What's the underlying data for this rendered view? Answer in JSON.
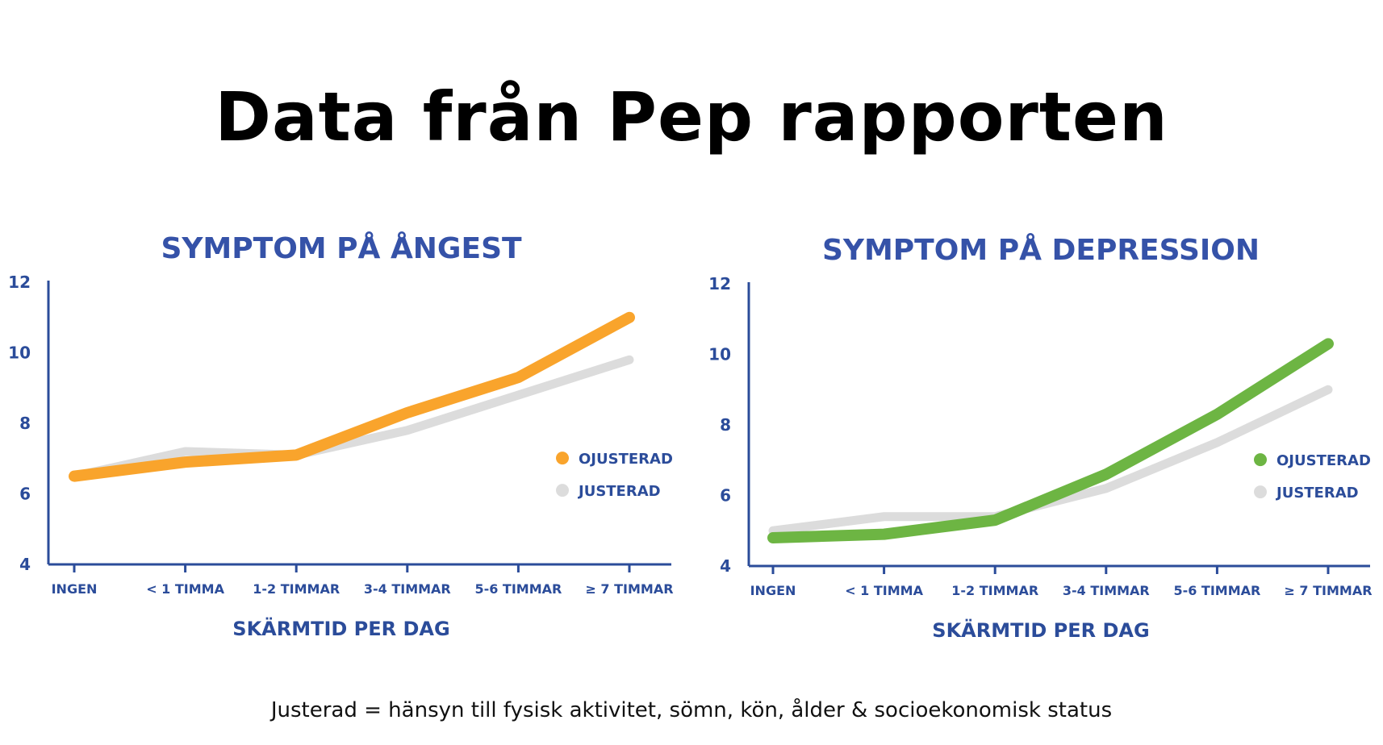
{
  "title": "Data från Pep rapporten",
  "footnote": "Justerad = hänsyn till fysisk aktivitet, sömn, kön, ålder & socioekonomisk status",
  "colors": {
    "axis": "#2b4c9a",
    "title": "#3552a8",
    "orange": "#f9a42c",
    "green": "#6db543",
    "gray": "#dcdcdc"
  },
  "chart_data": [
    {
      "type": "line",
      "title": "SYMPTOM PÅ ÅNGEST",
      "xlabel": "SKÄRMTID PER DAG",
      "ylabel": "",
      "categories": [
        "INGEN",
        "< 1 TIMMA",
        "1-2 TIMMAR",
        "3-4 TIMMAR",
        "5-6 TIMMAR",
        "≥ 7 TIMMAR"
      ],
      "ylim": [
        4,
        12
      ],
      "yticks": [
        "4",
        "6",
        "8",
        "10",
        "12"
      ],
      "grid": false,
      "legend": "right",
      "series": [
        {
          "name": "JUSTERAD",
          "color": "#dcdcdc",
          "values": [
            6.5,
            7.2,
            7.1,
            7.8,
            8.8,
            9.8
          ]
        },
        {
          "name": "OJUSTERAD",
          "color": "#f9a42c",
          "values": [
            6.5,
            6.9,
            7.1,
            8.3,
            9.3,
            11.0
          ]
        }
      ]
    },
    {
      "type": "line",
      "title": "SYMPTOM PÅ DEPRESSION",
      "xlabel": "SKÄRMTID PER DAG",
      "ylabel": "",
      "categories": [
        "INGEN",
        "< 1 TIMMA",
        "1-2 TIMMAR",
        "3-4 TIMMAR",
        "5-6 TIMMAR",
        "≥ 7 TIMMAR"
      ],
      "ylim": [
        4,
        12
      ],
      "yticks": [
        "4",
        "6",
        "8",
        "10",
        "12"
      ],
      "grid": false,
      "legend": "right",
      "series": [
        {
          "name": "JUSTERAD",
          "color": "#dcdcdc",
          "values": [
            5.0,
            5.4,
            5.4,
            6.2,
            7.5,
            9.0
          ]
        },
        {
          "name": "OJUSTERAD",
          "color": "#6db543",
          "values": [
            4.8,
            4.9,
            5.3,
            6.6,
            8.3,
            10.3
          ]
        }
      ]
    }
  ]
}
